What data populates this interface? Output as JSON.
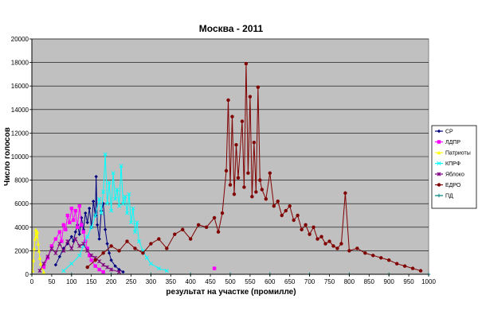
{
  "chart_data": {
    "type": "line",
    "title": "Москва - 2011",
    "xlabel": "результат на участке (промилле)",
    "ylabel": "Число голосов",
    "xlim": [
      0,
      1000
    ],
    "ylim": [
      0,
      20000
    ],
    "x_ticks": [
      0,
      50,
      100,
      150,
      200,
      250,
      300,
      350,
      400,
      450,
      500,
      550,
      600,
      650,
      700,
      750,
      800,
      850,
      900,
      950,
      1000
    ],
    "x_tick_labels": [
      "0",
      "50",
      "100",
      "150",
      "200",
      "250",
      "300",
      "350",
      "400",
      "450",
      "500",
      "550",
      "600",
      "650",
      "700",
      "750",
      "800",
      "850",
      "900",
      "950",
      "1000"
    ],
    "y_ticks": [
      0,
      2000,
      4000,
      6000,
      8000,
      10000,
      12000,
      14000,
      16000,
      18000,
      20000
    ],
    "y_tick_labels": [
      "0",
      "2000",
      "4000",
      "6000",
      "8000",
      "10000",
      "12000",
      "14000",
      "16000",
      "18000",
      "20000"
    ],
    "grid": true,
    "legend_position": "right",
    "series": [
      {
        "name": "СР",
        "color": "#000080",
        "marker": "diamond",
        "points": [
          [
            60,
            800
          ],
          [
            70,
            1500
          ],
          [
            80,
            2200
          ],
          [
            90,
            2600
          ],
          [
            100,
            3200
          ],
          [
            105,
            2800
          ],
          [
            110,
            3600
          ],
          [
            115,
            4200
          ],
          [
            120,
            3400
          ],
          [
            125,
            4800
          ],
          [
            130,
            3800
          ],
          [
            135,
            5200
          ],
          [
            140,
            4400
          ],
          [
            145,
            5600
          ],
          [
            150,
            4000
          ],
          [
            155,
            6200
          ],
          [
            160,
            5000
          ],
          [
            162,
            8300
          ],
          [
            165,
            4200
          ],
          [
            170,
            3000
          ],
          [
            175,
            5400
          ],
          [
            180,
            6000
          ],
          [
            185,
            3800
          ],
          [
            190,
            2600
          ],
          [
            195,
            1800
          ],
          [
            200,
            1200
          ],
          [
            210,
            700
          ],
          [
            220,
            400
          ],
          [
            230,
            200
          ]
        ]
      },
      {
        "name": "ЛДПР",
        "color": "#ff00ff",
        "marker": "square",
        "points": [
          [
            30,
            600
          ],
          [
            40,
            1400
          ],
          [
            50,
            2400
          ],
          [
            60,
            3000
          ],
          [
            70,
            3600
          ],
          [
            75,
            2800
          ],
          [
            80,
            4200
          ],
          [
            85,
            3800
          ],
          [
            90,
            5000
          ],
          [
            95,
            4400
          ],
          [
            100,
            5600
          ],
          [
            105,
            4600
          ],
          [
            110,
            5400
          ],
          [
            115,
            4000
          ],
          [
            120,
            5800
          ],
          [
            125,
            4200
          ],
          [
            130,
            3600
          ],
          [
            135,
            2800
          ],
          [
            140,
            2200
          ],
          [
            145,
            1600
          ],
          [
            150,
            1200
          ],
          [
            160,
            700
          ],
          [
            170,
            400
          ],
          [
            180,
            200
          ],
          [
            460,
            500
          ]
        ]
      },
      {
        "name": "Патриоты",
        "color": "#ffff00",
        "marker": "triangle",
        "points": [
          [
            2,
            300
          ],
          [
            4,
            1200
          ],
          [
            6,
            2200
          ],
          [
            8,
            3000
          ],
          [
            10,
            3800
          ],
          [
            12,
            3200
          ],
          [
            14,
            3600
          ],
          [
            16,
            2600
          ],
          [
            18,
            2000
          ],
          [
            20,
            1400
          ],
          [
            22,
            900
          ],
          [
            25,
            500
          ],
          [
            30,
            200
          ]
        ]
      },
      {
        "name": "КПРФ",
        "color": "#00ffff",
        "marker": "x",
        "points": [
          [
            80,
            300
          ],
          [
            100,
            900
          ],
          [
            120,
            1600
          ],
          [
            130,
            2400
          ],
          [
            140,
            3200
          ],
          [
            150,
            4000
          ],
          [
            160,
            5000
          ],
          [
            170,
            6400
          ],
          [
            175,
            5200
          ],
          [
            180,
            7000
          ],
          [
            185,
            10200
          ],
          [
            190,
            6000
          ],
          [
            195,
            7800
          ],
          [
            200,
            5400
          ],
          [
            205,
            8600
          ],
          [
            210,
            6400
          ],
          [
            215,
            7200
          ],
          [
            220,
            5800
          ],
          [
            225,
            9200
          ],
          [
            230,
            6000
          ],
          [
            235,
            6600
          ],
          [
            240,
            5200
          ],
          [
            245,
            6800
          ],
          [
            250,
            4400
          ],
          [
            255,
            5600
          ],
          [
            260,
            3600
          ],
          [
            265,
            4400
          ],
          [
            270,
            2800
          ],
          [
            280,
            2000
          ],
          [
            290,
            1400
          ],
          [
            300,
            900
          ],
          [
            320,
            500
          ],
          [
            340,
            300
          ]
        ]
      },
      {
        "name": "Яблоко",
        "color": "#800080",
        "marker": "star",
        "points": [
          [
            20,
            300
          ],
          [
            30,
            900
          ],
          [
            40,
            1500
          ],
          [
            50,
            2200
          ],
          [
            60,
            1800
          ],
          [
            70,
            2600
          ],
          [
            80,
            2000
          ],
          [
            90,
            2800
          ],
          [
            100,
            2200
          ],
          [
            110,
            3000
          ],
          [
            120,
            2400
          ],
          [
            130,
            2600
          ],
          [
            140,
            2000
          ],
          [
            150,
            1600
          ],
          [
            160,
            1400
          ],
          [
            170,
            1100
          ],
          [
            180,
            800
          ],
          [
            190,
            600
          ],
          [
            200,
            400
          ],
          [
            220,
            200
          ]
        ]
      },
      {
        "name": "ЕДРО",
        "color": "#800000",
        "marker": "circle",
        "points": [
          [
            140,
            600
          ],
          [
            160,
            1200
          ],
          [
            180,
            1800
          ],
          [
            200,
            2400
          ],
          [
            220,
            2000
          ],
          [
            240,
            2800
          ],
          [
            260,
            2200
          ],
          [
            280,
            1800
          ],
          [
            300,
            2600
          ],
          [
            320,
            3000
          ],
          [
            340,
            2200
          ],
          [
            360,
            3400
          ],
          [
            380,
            3800
          ],
          [
            400,
            3000
          ],
          [
            420,
            4200
          ],
          [
            440,
            4000
          ],
          [
            460,
            4800
          ],
          [
            470,
            3600
          ],
          [
            480,
            5200
          ],
          [
            490,
            8800
          ],
          [
            495,
            14800
          ],
          [
            500,
            7600
          ],
          [
            505,
            13400
          ],
          [
            510,
            6800
          ],
          [
            515,
            11000
          ],
          [
            520,
            8200
          ],
          [
            530,
            13000
          ],
          [
            535,
            7400
          ],
          [
            540,
            17900
          ],
          [
            545,
            8600
          ],
          [
            550,
            15100
          ],
          [
            555,
            6600
          ],
          [
            560,
            11200
          ],
          [
            565,
            7000
          ],
          [
            570,
            15900
          ],
          [
            575,
            8000
          ],
          [
            580,
            7200
          ],
          [
            590,
            6400
          ],
          [
            600,
            8600
          ],
          [
            610,
            5800
          ],
          [
            620,
            6200
          ],
          [
            630,
            5000
          ],
          [
            640,
            5400
          ],
          [
            650,
            5800
          ],
          [
            660,
            4600
          ],
          [
            670,
            5000
          ],
          [
            680,
            3800
          ],
          [
            690,
            4200
          ],
          [
            700,
            3400
          ],
          [
            710,
            4000
          ],
          [
            720,
            3000
          ],
          [
            730,
            3200
          ],
          [
            740,
            2600
          ],
          [
            750,
            2800
          ],
          [
            760,
            2400
          ],
          [
            770,
            2200
          ],
          [
            780,
            2600
          ],
          [
            790,
            6900
          ],
          [
            800,
            2000
          ],
          [
            820,
            2200
          ],
          [
            840,
            1800
          ],
          [
            860,
            1600
          ],
          [
            880,
            1400
          ],
          [
            900,
            1200
          ],
          [
            920,
            900
          ],
          [
            940,
            700
          ],
          [
            960,
            500
          ],
          [
            980,
            300
          ]
        ]
      },
      {
        "name": "ПД",
        "color": "#008080",
        "marker": "plus",
        "points": [
          [
            0,
            0
          ],
          [
            100,
            0
          ],
          [
            200,
            0
          ],
          [
            300,
            0
          ],
          [
            400,
            0
          ],
          [
            500,
            0
          ],
          [
            600,
            0
          ],
          [
            700,
            0
          ],
          [
            800,
            0
          ],
          [
            900,
            0
          ],
          [
            1000,
            0
          ]
        ]
      }
    ]
  }
}
